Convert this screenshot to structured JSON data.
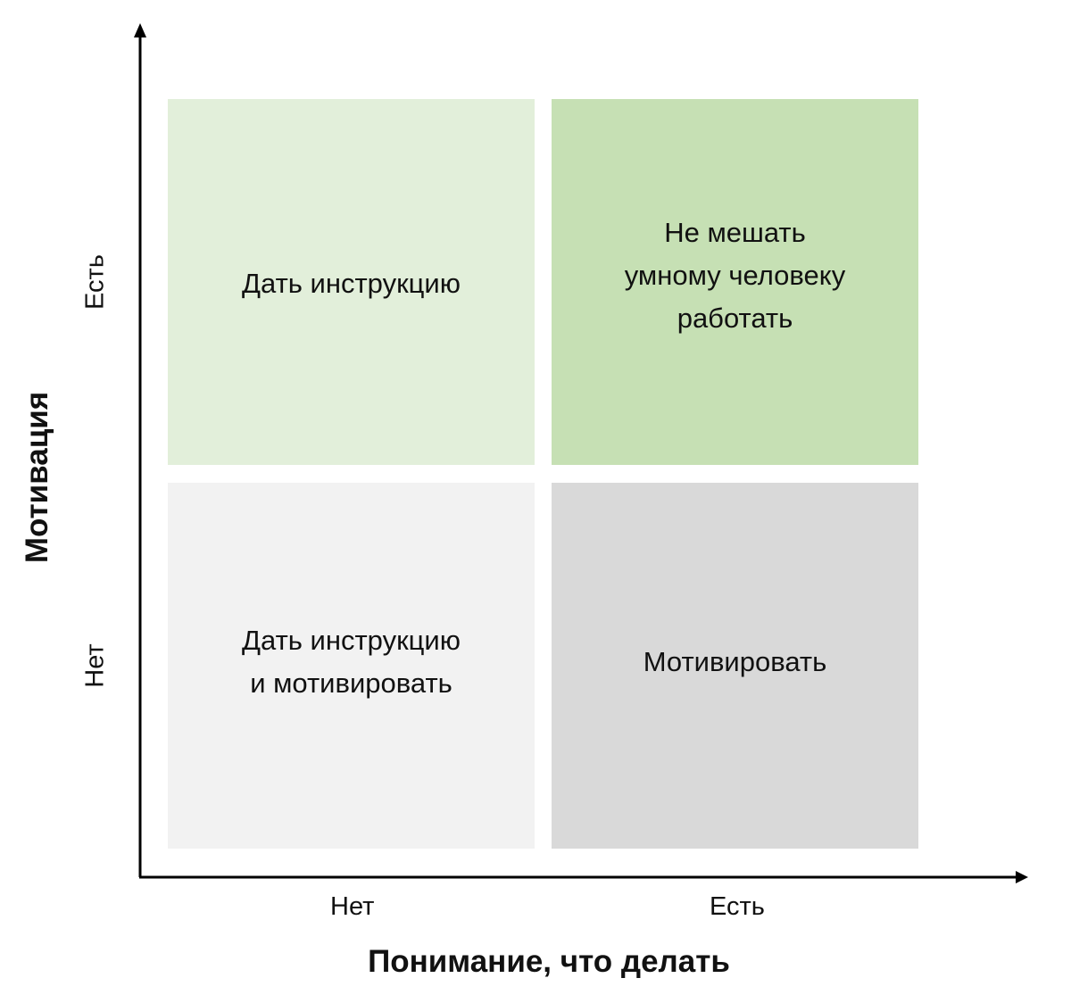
{
  "y_axis": {
    "title": "Мотивация",
    "ticks": [
      "Есть",
      "Нет"
    ]
  },
  "x_axis": {
    "title": "Понимание, что делать",
    "ticks": [
      "Нет",
      "Есть"
    ]
  },
  "quadrants": {
    "top_left": {
      "label": "Дать инструкцию",
      "color": "#e2efda"
    },
    "top_right": {
      "label_lines": [
        "Не мешать",
        "умному человеку",
        "работать"
      ],
      "color": "#c6e0b4"
    },
    "bottom_left": {
      "label_lines": [
        "Дать инструкцию",
        "и мотивировать"
      ],
      "color": "#f2f2f2"
    },
    "bottom_right": {
      "label": "Мотивировать",
      "color": "#d9d9d9"
    }
  }
}
